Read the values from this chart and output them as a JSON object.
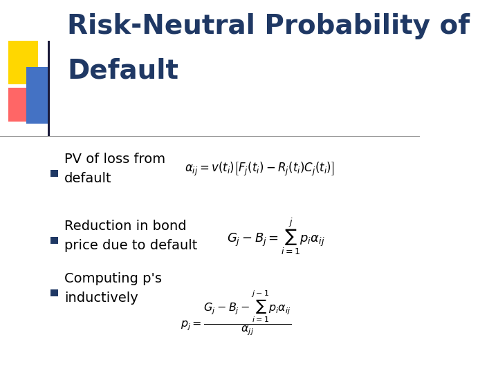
{
  "background_color": "#ffffff",
  "title_line1": "Risk-Neutral Probability of",
  "title_line2": "Default",
  "title_color": "#1F3864",
  "title_fontsize": 28,
  "bullet_square_color": "#1F3864",
  "accent_yellow": "#FFD700",
  "accent_red": "#FF6666",
  "accent_blue": "#4472C4",
  "bullet1_text": "PV of loss from\ndefault",
  "bullet2_text": "Reduction in bond\nprice due to default",
  "bullet3_text": "Computing p's\ninductively",
  "text_color": "#000000",
  "text_fontsize": 14
}
